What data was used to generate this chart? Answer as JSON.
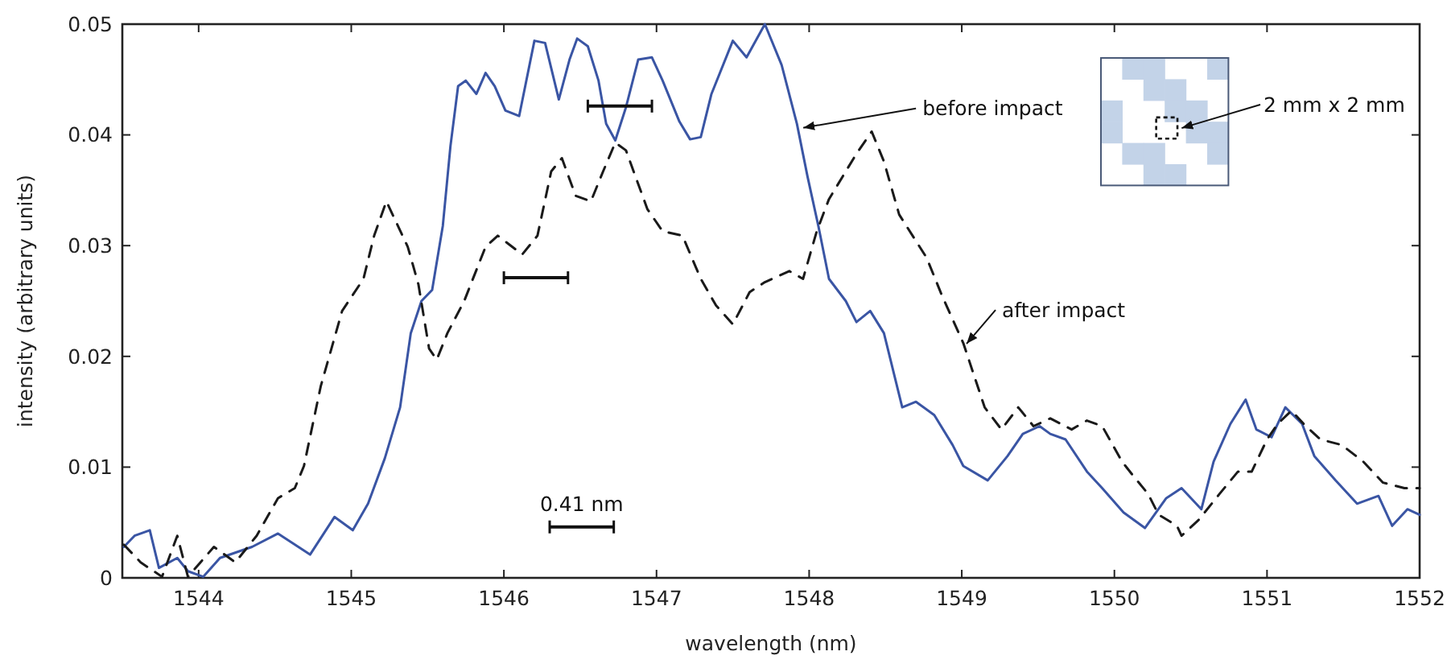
{
  "chart_data": {
    "type": "line",
    "xlabel": "wavelength (nm)",
    "ylabel": "intensity (arbitrary units)",
    "xlim": [
      1543.5,
      1552
    ],
    "xticks": [
      1544,
      1545,
      1546,
      1547,
      1548,
      1549,
      1550,
      1551,
      1552
    ],
    "ylim": [
      0,
      0.05
    ],
    "yticks": [
      0,
      0.01,
      0.02,
      0.03,
      0.04,
      0.05
    ],
    "marker": "none",
    "series": [
      {
        "color": "#3a55a4",
        "line_style": "solid",
        "x": [
          1543.51,
          1543.58,
          1543.68,
          1543.74,
          1543.86,
          1543.93,
          1544.03,
          1544.14,
          1544.35,
          1544.52,
          1544.73,
          1544.89,
          1545.01,
          1545.11,
          1545.22,
          1545.32,
          1545.39,
          1545.46,
          1545.53,
          1545.6,
          1545.65,
          1545.7,
          1545.75,
          1545.82,
          1545.88,
          1545.94,
          1546.01,
          1546.1,
          1546.2,
          1546.27,
          1546.36,
          1546.43,
          1546.48,
          1546.55,
          1546.62,
          1546.67,
          1546.73,
          1546.8,
          1546.88,
          1546.97,
          1547.04,
          1547.15,
          1547.22,
          1547.29,
          1547.36,
          1547.5,
          1547.59,
          1547.71,
          1547.82,
          1547.92,
          1547.99,
          1548.06,
          1548.13,
          1548.24,
          1548.31,
          1548.4,
          1548.49,
          1548.61,
          1548.7,
          1548.82,
          1548.94,
          1549.01,
          1549.17,
          1549.3,
          1549.4,
          1549.51,
          1549.58,
          1549.68,
          1549.82,
          1549.92,
          1550.06,
          1550.2,
          1550.34,
          1550.44,
          1550.57,
          1550.65,
          1550.76,
          1550.86,
          1550.93,
          1551.03,
          1551.12,
          1551.23,
          1551.31,
          1551.45,
          1551.59,
          1551.73,
          1551.82,
          1551.92,
          1552.0
        ],
        "values": [
          0.0028,
          0.0038,
          0.0043,
          0.0009,
          0.0018,
          0.0006,
          0.0001,
          0.0018,
          0.0028,
          0.004,
          0.0021,
          0.0055,
          0.0043,
          0.0067,
          0.0108,
          0.0154,
          0.0221,
          0.025,
          0.026,
          0.0318,
          0.039,
          0.0444,
          0.0449,
          0.0437,
          0.0456,
          0.0444,
          0.0422,
          0.0417,
          0.0485,
          0.0483,
          0.0432,
          0.0468,
          0.0487,
          0.048,
          0.0449,
          0.041,
          0.0395,
          0.0425,
          0.0468,
          0.047,
          0.0449,
          0.0412,
          0.0396,
          0.0398,
          0.0437,
          0.0485,
          0.047,
          0.05,
          0.0463,
          0.041,
          0.0362,
          0.0318,
          0.027,
          0.025,
          0.0231,
          0.0241,
          0.0221,
          0.0154,
          0.0159,
          0.0147,
          0.012,
          0.0101,
          0.0088,
          0.011,
          0.013,
          0.0137,
          0.013,
          0.0125,
          0.0096,
          0.0081,
          0.0059,
          0.0045,
          0.0072,
          0.0081,
          0.0062,
          0.0105,
          0.0139,
          0.0161,
          0.0134,
          0.0127,
          0.0154,
          0.0139,
          0.011,
          0.0088,
          0.0067,
          0.0074,
          0.0047,
          0.0062,
          0.0057
        ]
      },
      {
        "color": "#1a1a1a",
        "line_style": "dashed",
        "x": [
          1543.51,
          1543.62,
          1543.76,
          1543.86,
          1543.93,
          1544.1,
          1544.24,
          1544.38,
          1544.52,
          1544.63,
          1544.69,
          1544.8,
          1544.94,
          1545.08,
          1545.15,
          1545.23,
          1545.37,
          1545.44,
          1545.51,
          1545.56,
          1545.63,
          1545.74,
          1545.88,
          1545.96,
          1546.12,
          1546.22,
          1546.31,
          1546.38,
          1546.47,
          1546.57,
          1546.65,
          1546.73,
          1546.8,
          1546.94,
          1547.04,
          1547.17,
          1547.29,
          1547.39,
          1547.5,
          1547.61,
          1547.71,
          1547.87,
          1547.96,
          1548.05,
          1548.13,
          1548.31,
          1548.41,
          1548.49,
          1548.59,
          1548.77,
          1548.87,
          1549.01,
          1549.08,
          1549.15,
          1549.26,
          1549.37,
          1549.47,
          1549.58,
          1549.72,
          1549.82,
          1549.92,
          1550.05,
          1550.13,
          1550.22,
          1550.29,
          1550.41,
          1550.44,
          1550.55,
          1550.69,
          1550.81,
          1550.9,
          1551.0,
          1551.07,
          1551.16,
          1551.24,
          1551.35,
          1551.49,
          1551.63,
          1551.76,
          1551.9,
          1552.0
        ],
        "values": [
          0.003,
          0.0014,
          0.0001,
          0.0038,
          0.0001,
          0.0028,
          0.0014,
          0.0038,
          0.0072,
          0.0081,
          0.0101,
          0.0173,
          0.0241,
          0.027,
          0.0309,
          0.034,
          0.0299,
          0.0265,
          0.0207,
          0.0197,
          0.0221,
          0.025,
          0.0299,
          0.0309,
          0.0292,
          0.0309,
          0.0367,
          0.0379,
          0.0345,
          0.034,
          0.0367,
          0.0393,
          0.0386,
          0.0333,
          0.0313,
          0.0309,
          0.027,
          0.0246,
          0.0229,
          0.0258,
          0.0267,
          0.0277,
          0.027,
          0.0313,
          0.0342,
          0.0383,
          0.0403,
          0.0376,
          0.0328,
          0.0289,
          0.0255,
          0.0212,
          0.0183,
          0.0154,
          0.0134,
          0.0154,
          0.0137,
          0.0144,
          0.0134,
          0.0142,
          0.0137,
          0.0105,
          0.0091,
          0.0076,
          0.0057,
          0.0047,
          0.0038,
          0.0052,
          0.0076,
          0.0096,
          0.0096,
          0.0125,
          0.0139,
          0.0151,
          0.0139,
          0.0125,
          0.012,
          0.0105,
          0.0086,
          0.0081,
          0.0081
        ]
      }
    ],
    "annotations": [
      {
        "text": "before impact",
        "x": 1547.93,
        "y": 0.0405
      },
      {
        "text": "after impact",
        "x": 1549.0,
        "y": 0.021
      },
      "0.41 nm",
      "2 mm x 2 mm"
    ]
  }
}
